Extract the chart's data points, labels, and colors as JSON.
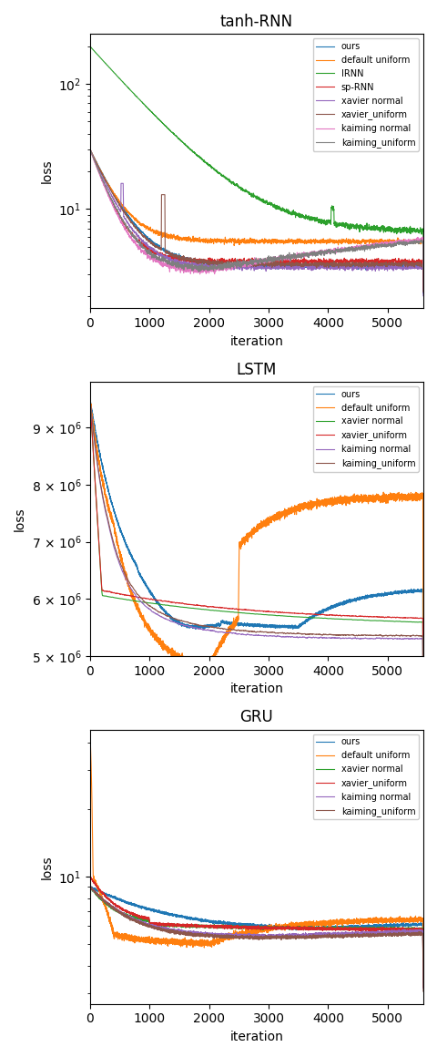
{
  "titles": [
    "tanh-RNN",
    "LSTM",
    "GRU"
  ],
  "xlabel": "iteration",
  "ylabel": "loss",
  "n_iter": 5600,
  "colors": {
    "ours": "#1f77b4",
    "default_uniform": "#ff7f0e",
    "IRNN": "#2ca02c",
    "sp_RNN": "#d62728",
    "xavier_normal": "#9467bd",
    "xavier_uniform": "#8c564b",
    "kaiming_normal": "#e377c2",
    "kaiming_uniform": "#7f7f7f"
  },
  "figsize": [
    4.8,
    11.6
  ],
  "dpi": 100
}
